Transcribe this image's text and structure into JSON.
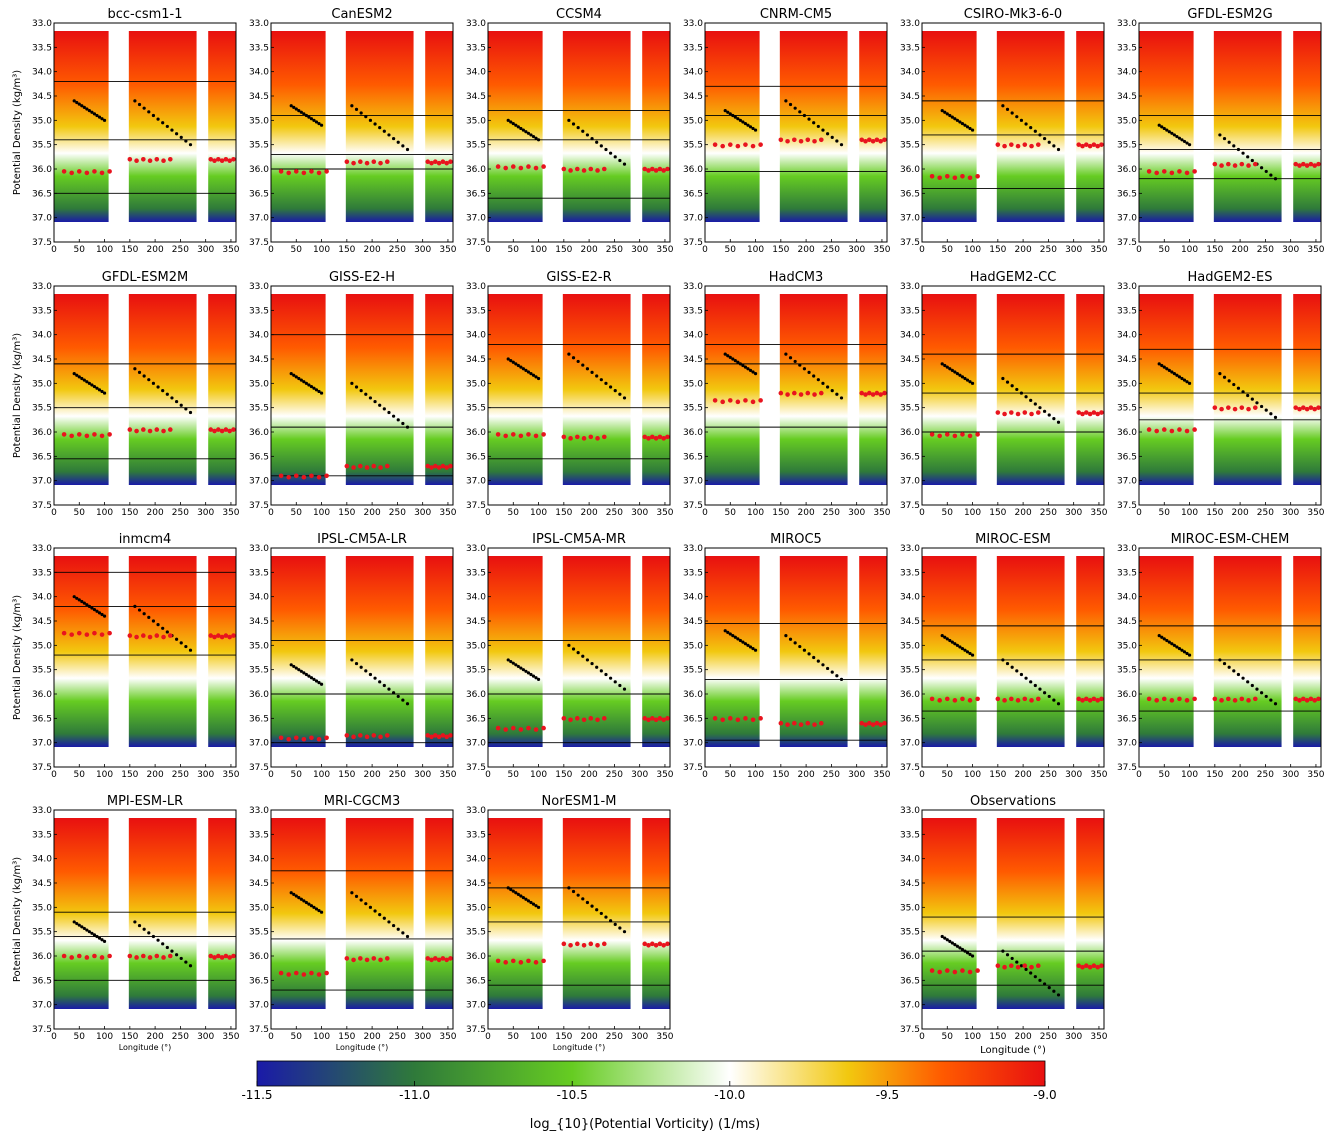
{
  "colorbar": {
    "min": -11.5,
    "max": -9.0,
    "ticks": [
      "-11.5",
      "-11.0",
      "-10.5",
      "-10.0",
      "-9.5",
      "-9.0"
    ],
    "label": "log_{10}(Potential Vorticity) (1/ms)",
    "colors": [
      "#1a1aa8",
      "#2f7a3a",
      "#66cc22",
      "#ffffff",
      "#f2c80f",
      "#ff5a00",
      "#e81010"
    ]
  },
  "axes_common": {
    "y_ticks": [
      "33.0",
      "33.5",
      "34.0",
      "34.5",
      "35.0",
      "35.5",
      "36.0",
      "36.5",
      "37.0",
      "37.5"
    ],
    "x_ticks": [
      "0",
      "50",
      "100",
      "150",
      "200",
      "250",
      "300",
      "350"
    ],
    "y_label": "Potential Density (kg/m³)",
    "x_label": "Longitude (°)"
  },
  "chart_data": {
    "type": "heatmap",
    "xlim": [
      0,
      360
    ],
    "ylim": [
      37.5,
      33.0
    ],
    "y_inverted": true,
    "panels": [
      {
        "name": "bcc-csm1-1",
        "hlines": [
          34.2,
          35.4,
          36.5
        ],
        "red": [
          36.05,
          35.8
        ],
        "black": [
          34.6,
          34.6
        ]
      },
      {
        "name": "CanESM2",
        "hlines": [
          34.9,
          35.7,
          36.0
        ],
        "red": [
          36.05,
          35.85
        ],
        "black": [
          34.7,
          34.7
        ]
      },
      {
        "name": "CCSM4",
        "hlines": [
          34.8,
          35.4,
          36.6
        ],
        "red": [
          35.95,
          36.0
        ],
        "black": [
          35.0,
          35.0
        ]
      },
      {
        "name": "CNRM-CM5",
        "hlines": [
          34.3,
          34.9,
          36.05
        ],
        "red": [
          35.5,
          35.4
        ],
        "black": [
          34.8,
          34.6
        ]
      },
      {
        "name": "CSIRO-Mk3-6-0",
        "hlines": [
          34.6,
          35.3,
          36.4
        ],
        "red": [
          36.15,
          35.5
        ],
        "black": [
          34.8,
          34.7
        ]
      },
      {
        "name": "GFDL-ESM2G",
        "hlines": [
          34.9,
          35.6,
          36.2
        ],
        "red": [
          36.05,
          35.9
        ],
        "black": [
          35.1,
          35.3
        ]
      },
      {
        "name": "GFDL-ESM2M",
        "hlines": [
          34.6,
          35.5,
          36.55
        ],
        "red": [
          36.05,
          35.95
        ],
        "black": [
          34.8,
          34.7
        ]
      },
      {
        "name": "GISS-E2-H",
        "hlines": [
          34.0,
          35.9,
          36.9
        ],
        "red": [
          36.9,
          36.7
        ],
        "black": [
          34.8,
          35.0
        ]
      },
      {
        "name": "GISS-E2-R",
        "hlines": [
          34.2,
          35.5,
          36.55
        ],
        "red": [
          36.05,
          36.1
        ],
        "black": [
          34.5,
          34.4
        ]
      },
      {
        "name": "HadCM3",
        "hlines": [
          34.2,
          34.6,
          35.9
        ],
        "red": [
          35.35,
          35.2
        ],
        "black": [
          34.4,
          34.4
        ]
      },
      {
        "name": "HadGEM2-CC",
        "hlines": [
          34.4,
          35.2,
          36.0
        ],
        "red": [
          36.05,
          35.6
        ],
        "black": [
          34.6,
          34.9
        ]
      },
      {
        "name": "HadGEM2-ES",
        "hlines": [
          34.3,
          35.2,
          35.75
        ],
        "red": [
          35.95,
          35.5
        ],
        "black": [
          34.6,
          34.8
        ]
      },
      {
        "name": "inmcm4",
        "hlines": [
          33.5,
          34.2,
          35.2
        ],
        "red": [
          34.75,
          34.8
        ],
        "black": [
          34.0,
          34.2
        ]
      },
      {
        "name": "IPSL-CM5A-LR",
        "hlines": [
          34.9,
          36.0,
          37.0
        ],
        "red": [
          36.9,
          36.85
        ],
        "black": [
          35.4,
          35.3
        ]
      },
      {
        "name": "IPSL-CM5A-MR",
        "hlines": [
          34.9,
          36.0,
          37.0
        ],
        "red": [
          36.7,
          36.5
        ],
        "black": [
          35.3,
          35.0
        ]
      },
      {
        "name": "MIROC5",
        "hlines": [
          34.55,
          35.7,
          36.95
        ],
        "red": [
          36.5,
          36.6
        ],
        "black": [
          34.7,
          34.8
        ]
      },
      {
        "name": "MIROC-ESM",
        "hlines": [
          34.6,
          35.3,
          36.35
        ],
        "red": [
          36.1,
          36.1
        ],
        "black": [
          34.8,
          35.3
        ]
      },
      {
        "name": "MIROC-ESM-CHEM",
        "hlines": [
          34.6,
          35.3,
          36.35
        ],
        "red": [
          36.1,
          36.1
        ],
        "black": [
          34.8,
          35.3
        ]
      },
      {
        "name": "MPI-ESM-LR",
        "hlines": [
          35.1,
          35.6,
          36.5
        ],
        "red": [
          36.0,
          36.0
        ],
        "black": [
          35.3,
          35.3
        ]
      },
      {
        "name": "MRI-CGCM3",
        "hlines": [
          34.25,
          35.65,
          36.7
        ],
        "red": [
          36.35,
          36.05
        ],
        "black": [
          34.7,
          34.7
        ]
      },
      {
        "name": "NorESM1-M",
        "hlines": [
          34.6,
          35.3,
          36.6
        ],
        "red": [
          36.1,
          35.75
        ],
        "black": [
          34.6,
          34.6
        ]
      },
      {
        "name": "Observations",
        "hlines": [
          35.2,
          35.9,
          36.6
        ],
        "red": [
          36.3,
          36.2
        ],
        "black": [
          35.6,
          35.9
        ]
      }
    ]
  }
}
